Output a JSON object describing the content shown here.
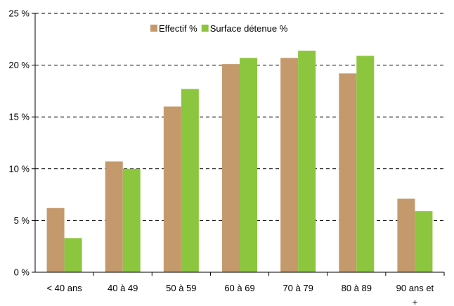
{
  "chart_data": {
    "type": "bar",
    "title": "",
    "xlabel": "",
    "ylabel": "",
    "categories": [
      "< 40 ans",
      "40 à 49",
      "50 à 59",
      "60 à 69",
      "70 à 79",
      "80 à 89",
      "90 ans et +"
    ],
    "series": [
      {
        "name": "Effectif %",
        "color": "#c49a6c",
        "values": [
          6.2,
          10.7,
          16.0,
          20.1,
          20.7,
          19.2,
          7.1
        ]
      },
      {
        "name": "Surface détenue %",
        "color": "#8cc63f",
        "values": [
          3.3,
          10.0,
          17.7,
          20.7,
          21.4,
          20.9,
          5.9
        ]
      }
    ],
    "ylim": [
      0,
      25
    ],
    "yticks": [
      0,
      5,
      10,
      15,
      20,
      25
    ],
    "ytick_labels": [
      "0 %",
      "5 %",
      "10 %",
      "15 %",
      "20 %",
      "25 %"
    ],
    "grid": "horizontal dashed",
    "legend_position": "top-center"
  }
}
